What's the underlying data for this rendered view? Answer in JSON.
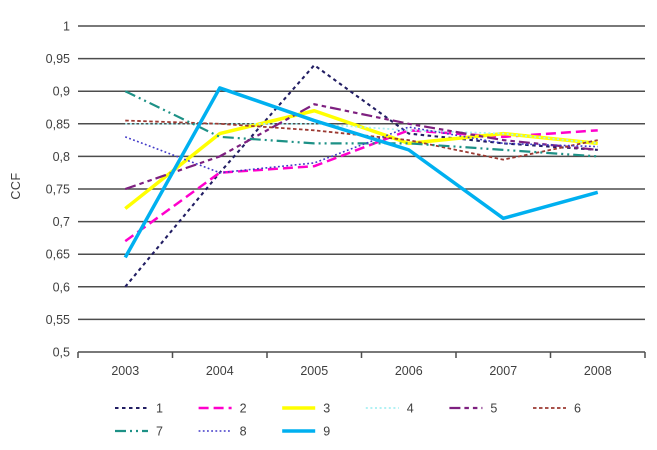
{
  "chart_data": {
    "type": "line",
    "title": "",
    "xlabel": "",
    "ylabel": "CCF",
    "categories": [
      "2003",
      "2004",
      "2005",
      "2006",
      "2007",
      "2008"
    ],
    "ylim": [
      0.5,
      1.0
    ],
    "ytick_step": 0.05,
    "ytick_labels": [
      "1",
      "0,95",
      "0,9",
      "0,85",
      "0,8",
      "0,75",
      "0,7",
      "0,65",
      "0,6",
      "0,55",
      "0,5"
    ],
    "grid": true,
    "legend_position": "bottom",
    "grid_color": "#4D4D4D",
    "text_color": "#3F3F3F",
    "series": [
      {
        "name": "1",
        "color": "#221E63",
        "dash": "3.5 3.5",
        "width": 2.1,
        "values": [
          0.6,
          0.775,
          0.94,
          0.835,
          0.82,
          0.81
        ]
      },
      {
        "name": "2",
        "color": "#FF00CC",
        "dash": "10 5",
        "width": 2.5,
        "values": [
          0.67,
          0.775,
          0.785,
          0.84,
          0.83,
          0.84
        ]
      },
      {
        "name": "3",
        "color": "#FFFF00",
        "dash": "",
        "width": 3.5,
        "values": [
          0.72,
          0.835,
          0.87,
          0.82,
          0.835,
          0.82
        ]
      },
      {
        "name": "4",
        "color": "#A5EFF2",
        "dash": "2 2.6",
        "width": 1.7,
        "values": [
          0.85,
          0.85,
          0.85,
          0.84,
          0.835,
          0.82
        ]
      },
      {
        "name": "5",
        "color": "#7E2080",
        "dash": "11 4 4.5 4 4.5 4",
        "width": 2.2,
        "values": [
          0.75,
          0.8,
          0.88,
          0.85,
          0.825,
          0.81
        ]
      },
      {
        "name": "6",
        "color": "#9C3A32",
        "dash": "3.5 2.5",
        "width": 1.8,
        "values": [
          0.855,
          0.85,
          0.84,
          0.825,
          0.795,
          0.825
        ]
      },
      {
        "name": "7",
        "color": "#1D9186",
        "dash": "11 4 2 4 2 4",
        "width": 2.2,
        "values": [
          0.9,
          0.83,
          0.82,
          0.82,
          0.81,
          0.8
        ]
      },
      {
        "name": "8",
        "color": "#4139C8",
        "dash": "1.8 2.4",
        "width": 1.6,
        "values": [
          0.83,
          0.775,
          0.79,
          0.845,
          0.82,
          0.815
        ]
      },
      {
        "name": "9",
        "color": "#00B0F0",
        "dash": "",
        "width": 3.5,
        "values": [
          0.645,
          0.905,
          0.855,
          0.81,
          0.705,
          0.745
        ]
      }
    ]
  }
}
